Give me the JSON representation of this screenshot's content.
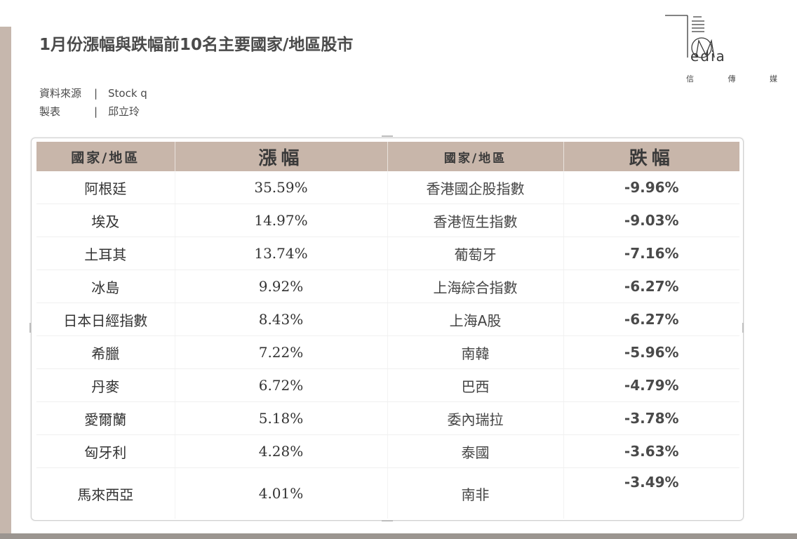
{
  "title": "1月份漲幅與跌幅前10名主要國家/地區股市",
  "meta": {
    "source_key": "資料來源",
    "source_value": "Stock q",
    "maker_key": "製表",
    "maker_value": "邱立玲",
    "separator": "|"
  },
  "logo": {
    "word": "edia",
    "chinese": [
      "信",
      "傳",
      "媒"
    ]
  },
  "colors": {
    "header_bg": "#c8b6aa",
    "left_bar": "#c6b7ad",
    "bottom_bar": "#9b9590"
  },
  "table": {
    "headers": [
      "國家/地區",
      "漲幅",
      "國家/地區",
      "跌幅"
    ],
    "rows": [
      {
        "gain_country": "阿根廷",
        "gain": "35.59%",
        "loss_country": "香港國企股指數",
        "loss": "-9.96%"
      },
      {
        "gain_country": "埃及",
        "gain": "14.97%",
        "loss_country": "香港恆生指數",
        "loss": "-9.03%"
      },
      {
        "gain_country": "土耳其",
        "gain": "13.74%",
        "loss_country": "葡萄牙",
        "loss": "-7.16%"
      },
      {
        "gain_country": "冰島",
        "gain": "9.92%",
        "loss_country": "上海綜合指數",
        "loss": "-6.27%"
      },
      {
        "gain_country": "日本日經指數",
        "gain": "8.43%",
        "loss_country": "上海A股",
        "loss": "-6.27%"
      },
      {
        "gain_country": "希臘",
        "gain": "7.22%",
        "loss_country": "南韓",
        "loss": "-5.96%"
      },
      {
        "gain_country": "丹麥",
        "gain": "6.72%",
        "loss_country": "巴西",
        "loss": "-4.79%"
      },
      {
        "gain_country": "愛爾蘭",
        "gain": "5.18%",
        "loss_country": "委內瑞拉",
        "loss": "-3.78%"
      },
      {
        "gain_country": "匈牙利",
        "gain": "4.28%",
        "loss_country": "泰國",
        "loss": "-3.63%"
      },
      {
        "gain_country": "馬來西亞",
        "gain": "4.01%",
        "loss_country": "南非",
        "loss": "-3.49%"
      }
    ]
  }
}
